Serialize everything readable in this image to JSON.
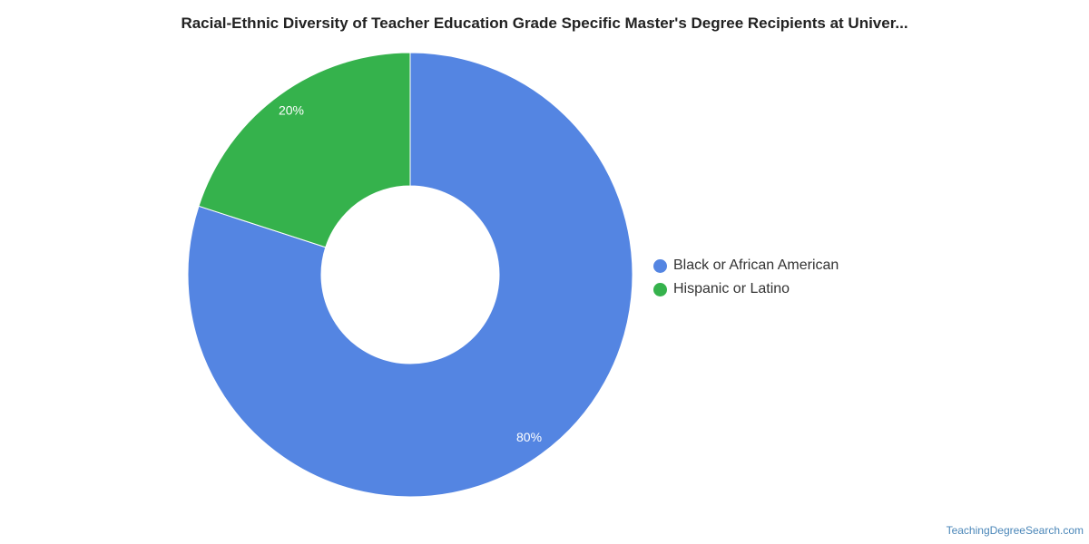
{
  "chart_data": {
    "type": "pie",
    "title": "Racial-Ethnic Diversity of Teacher Education Grade Specific Master's Degree Recipients at Univer...",
    "categories": [
      "Black or African American",
      "Hispanic or Latino"
    ],
    "values": [
      80,
      20
    ],
    "value_labels": [
      "80%",
      "20%"
    ],
    "colors": [
      "#5485e2",
      "#35b24c"
    ],
    "donut": true,
    "legend_placement": "right"
  },
  "footer": {
    "source": "TeachingDegreeSearch.com"
  }
}
